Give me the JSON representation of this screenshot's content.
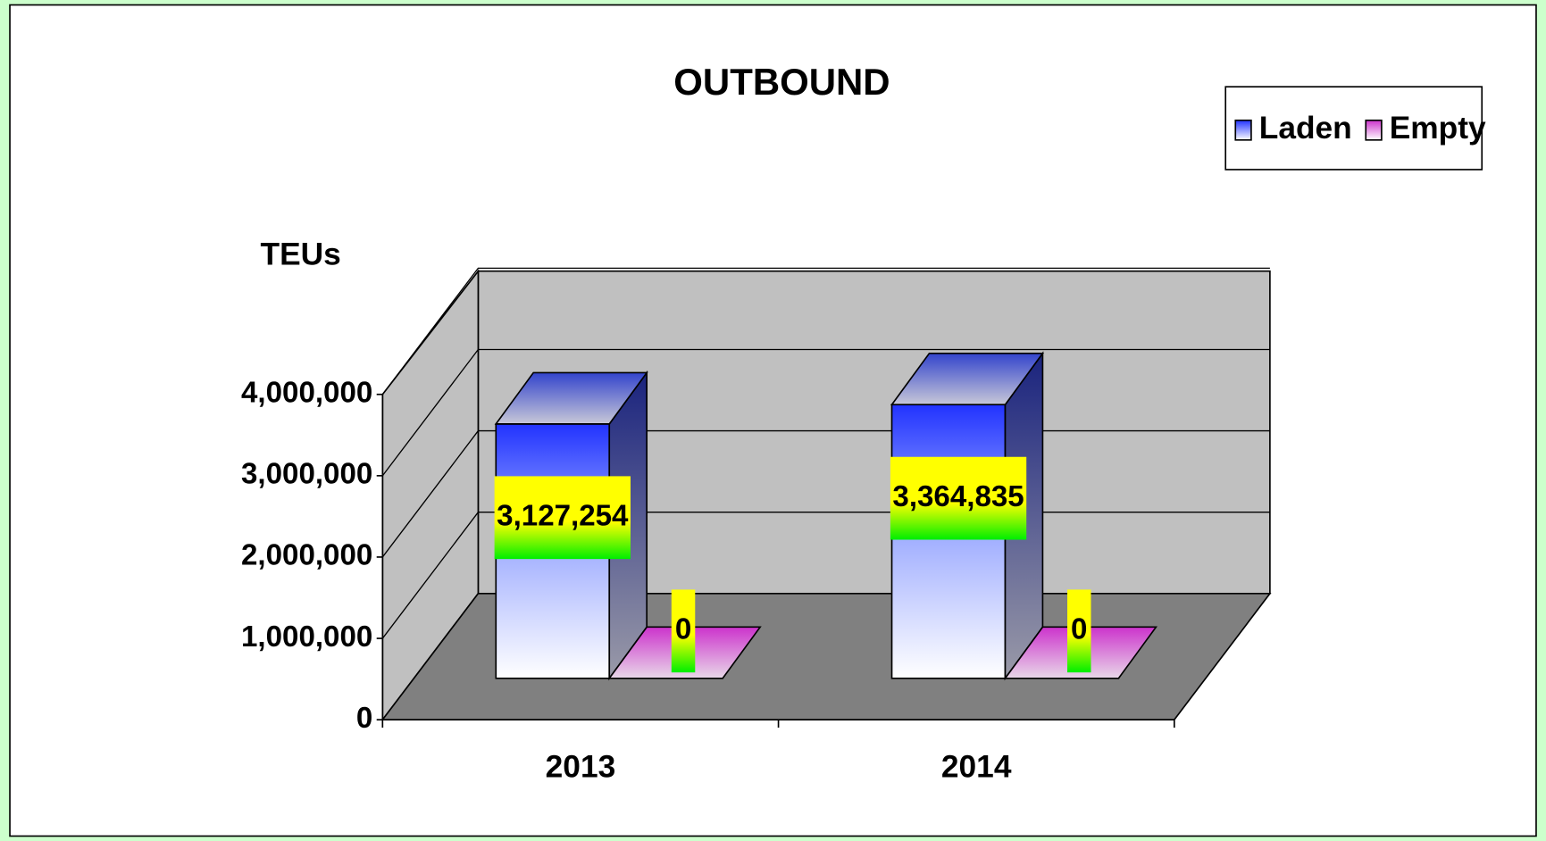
{
  "chart_data": {
    "type": "bar3d",
    "title": "OUTBOUND",
    "y_axis_label": "TEUs",
    "categories": [
      "2013",
      "2014"
    ],
    "series": [
      {
        "name": "Laden",
        "color": "#2233ff",
        "values": [
          3127254,
          3364835
        ],
        "value_labels": [
          "3,127,254",
          "3,364,835"
        ]
      },
      {
        "name": "Empty",
        "color": "#cc33cc",
        "values": [
          0,
          0
        ]
      }
    ],
    "ylim": [
      0,
      4000000
    ],
    "yticks": [
      0,
      {
        "value": 1000000,
        "label": "1,000,000"
      },
      {
        "value": 2000000,
        "label": "2,000,000"
      },
      {
        "value": 3000000,
        "label": "3,000,000"
      },
      {
        "value": 4000000,
        "label": "4,000,000"
      }
    ],
    "grid": true,
    "legend": "top-right"
  }
}
